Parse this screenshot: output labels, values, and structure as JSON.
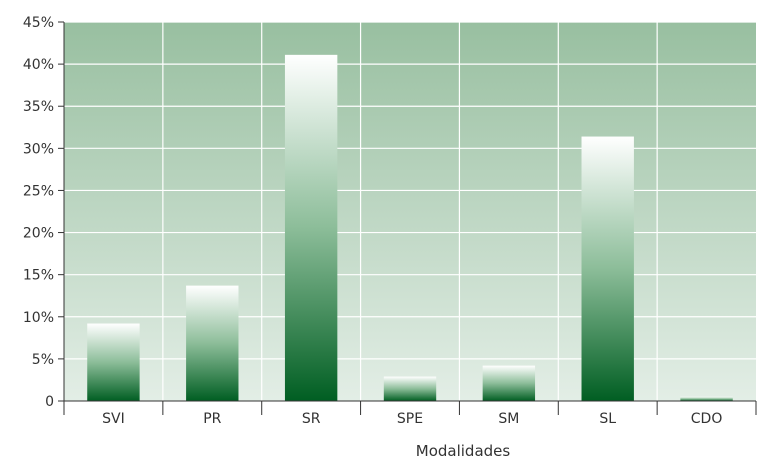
{
  "chart_data": {
    "type": "bar",
    "title": "",
    "xlabel": "Modalidades",
    "ylabel": "",
    "categories": [
      "SVI",
      "PR",
      "SR",
      "SPE",
      "SM",
      "SL",
      "CDO"
    ],
    "values": [
      9.2,
      13.7,
      41.1,
      2.9,
      4.2,
      31.4,
      0.5
    ],
    "ylim": [
      0,
      45
    ],
    "ytick_values": [
      0,
      5,
      10,
      15,
      20,
      25,
      30,
      35,
      40,
      45
    ],
    "ytick_labels": [
      "0",
      "5%",
      "10%",
      "15%",
      "20%",
      "25%",
      "30%",
      "35%",
      "40%",
      "45%"
    ],
    "grid": true,
    "legend": "none"
  },
  "colors": {
    "plot_background_top": "#98bfa0",
    "plot_background_bottom": "#e3eee6",
    "bar_top": "#ffffff",
    "bar_mid": "#8cbd99",
    "bar_bottom": "#005e22",
    "grid_line": "#ffffff",
    "axis_line": "#333333"
  }
}
